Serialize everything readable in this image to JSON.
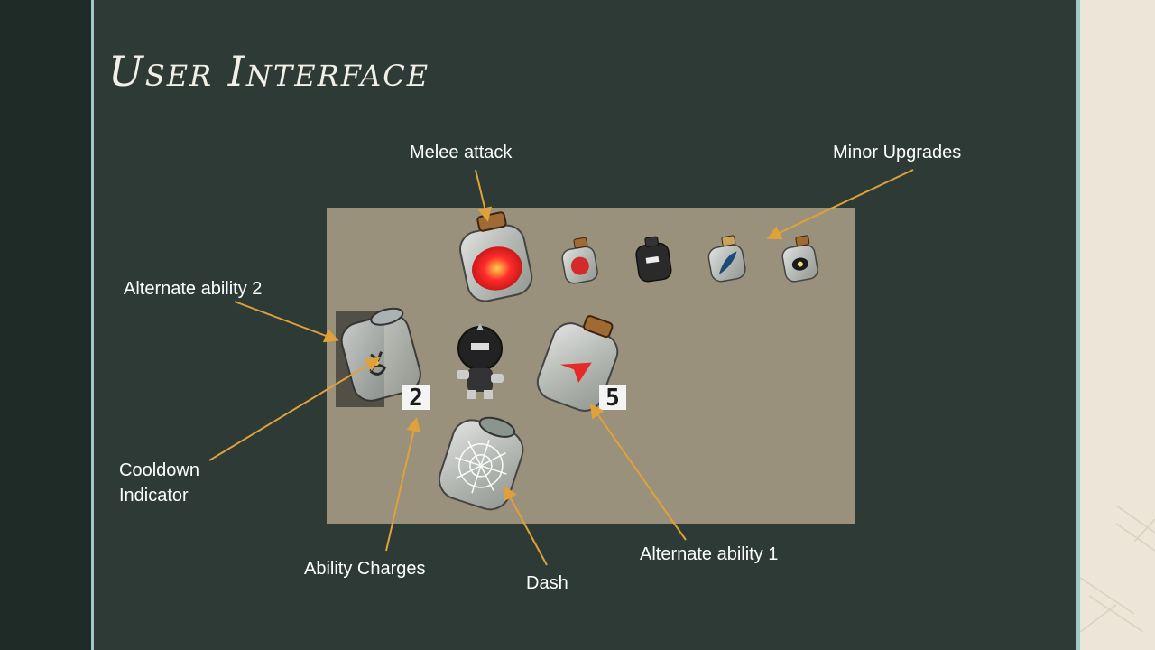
{
  "slide": {
    "title": "User Interface",
    "colors": {
      "background": "#2e3a36",
      "accent_line": "#9fc8c8",
      "panel": "#9a917c",
      "arrow": "#e0a13a"
    }
  },
  "labels": {
    "melee_attack": "Melee attack",
    "minor_upgrades": "Minor Upgrades",
    "alternate_ability_2": "Alternate ability 2",
    "cooldown_indicator": "Cooldown Indicator",
    "ability_charges": "Ability Charges",
    "dash": "Dash",
    "alternate_ability_1": "Alternate ability 1"
  },
  "hud": {
    "alternate_ability_2_charges": "2",
    "alternate_ability_1_charges": "5",
    "icons": [
      "melee-potion-jar-icon",
      "minor-upgrade-jar-icon",
      "alternate-ability-jar-icon",
      "player-character-icon",
      "dash-web-jar-icon"
    ]
  }
}
